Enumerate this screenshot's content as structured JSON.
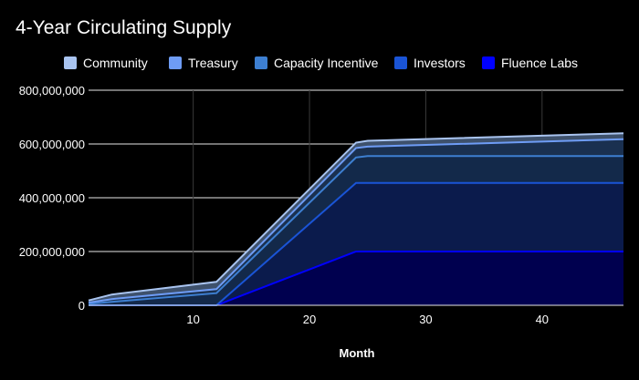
{
  "title": "4-Year Circulating Supply",
  "chart_data": {
    "type": "area",
    "stacked": true,
    "title": "4-Year Circulating Supply",
    "xlabel": "Month",
    "ylabel": "",
    "xlim": [
      1,
      47
    ],
    "ylim": [
      0,
      800000000
    ],
    "x_ticks": [
      10,
      20,
      30,
      40
    ],
    "y_ticks": [
      0,
      200000000,
      400000000,
      600000000,
      800000000
    ],
    "y_tick_labels": [
      "0",
      "200,000,000",
      "400,000,000",
      "600,000,000",
      "800,000,000"
    ],
    "grid": true,
    "legend_position": "top",
    "x": [
      1,
      3,
      12,
      24,
      25,
      47
    ],
    "series": [
      {
        "name": "Fluence Labs",
        "color": "#0000ff",
        "fill": "#00004f",
        "values": [
          0,
          0,
          0,
          200000000,
          200000000,
          200000000
        ]
      },
      {
        "name": "Investors",
        "color": "#1a54d6",
        "fill": "#0b1b4c",
        "values": [
          0,
          0,
          0,
          255000000,
          255000000,
          255000000
        ]
      },
      {
        "name": "Capacity Incentive",
        "color": "#3d7fd1",
        "fill": "#13294a",
        "values": [
          5000000,
          13000000,
          45000000,
          95000000,
          100000000,
          100000000
        ]
      },
      {
        "name": "Treasury",
        "color": "#6e9cf5",
        "fill": "#1a3050",
        "values": [
          5000000,
          10000000,
          15000000,
          35000000,
          35000000,
          63000000
        ]
      },
      {
        "name": "Community",
        "color": "#a9c4f0",
        "fill": "#3e516c",
        "values": [
          8000000,
          17000000,
          27000000,
          20000000,
          22000000,
          22000000
        ]
      }
    ]
  }
}
